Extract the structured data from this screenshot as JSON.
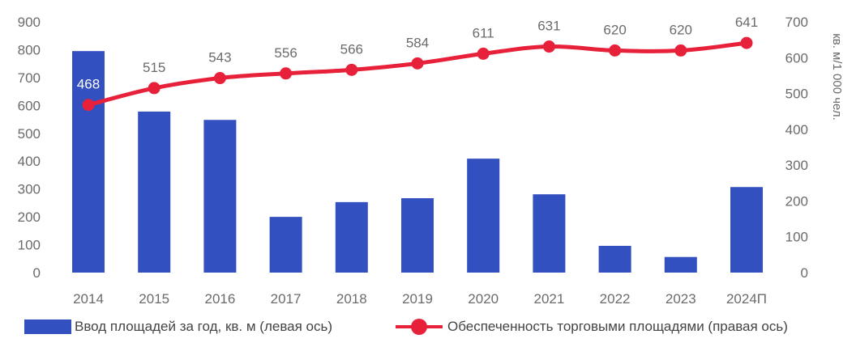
{
  "chart_data": {
    "type": "bar",
    "categories": [
      "2014",
      "2015",
      "2016",
      "2017",
      "2018",
      "2019",
      "2020",
      "2021",
      "2022",
      "2023",
      "2024П"
    ],
    "series": [
      {
        "name": "Ввод площадей за год, кв. м (левая ось)",
        "type": "bar",
        "axis": "left",
        "values": [
          795,
          578,
          548,
          200,
          253,
          267,
          409,
          281,
          96,
          56,
          307
        ]
      },
      {
        "name": "Обеспеченность торговыми площадями (правая ось)",
        "type": "line",
        "axis": "right",
        "values": [
          468,
          515,
          543,
          556,
          566,
          584,
          611,
          631,
          620,
          620,
          641
        ],
        "labels": [
          "468",
          "515",
          "543",
          "556",
          "566",
          "584",
          "611",
          "631",
          "620",
          "620",
          "641"
        ]
      }
    ],
    "y_left": {
      "min": 0,
      "max": 900,
      "ticks": [
        "0",
        "100",
        "200",
        "300",
        "400",
        "500",
        "600",
        "700",
        "800",
        "900"
      ]
    },
    "y_right": {
      "min": 0,
      "max": 700,
      "ticks": [
        "0",
        "100",
        "200",
        "300",
        "400",
        "500",
        "600",
        "700"
      ],
      "label": "кв. м/1 000 чел."
    },
    "legend_position": "bottom",
    "grid": false,
    "colors": {
      "bar": "#3350c0",
      "line": "#e8213a"
    }
  },
  "legend": {
    "bar_label": "Ввод площадей за год, кв. м (левая ось)",
    "line_label": "Обеспеченность торговыми площадями (правая ось)"
  }
}
